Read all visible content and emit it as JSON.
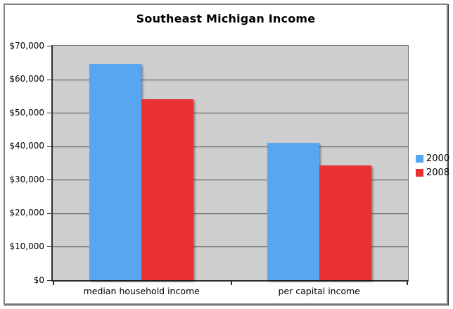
{
  "chart_data": {
    "type": "bar",
    "title": "Southeast Michigan Income",
    "categories": [
      "median household income",
      "per capital income"
    ],
    "series": [
      {
        "name": "2000",
        "color": "#58a6f2",
        "values": [
          64500,
          41000
        ]
      },
      {
        "name": "2008",
        "color": "#e93134",
        "values": [
          54000,
          34300
        ]
      }
    ],
    "ylim": [
      0,
      70000
    ],
    "yticks": [
      {
        "value": 0,
        "label": "$0"
      },
      {
        "value": 10000,
        "label": "$10,000"
      },
      {
        "value": 20000,
        "label": "$20,000"
      },
      {
        "value": 30000,
        "label": "$30,000"
      },
      {
        "value": 40000,
        "label": "$40,000"
      },
      {
        "value": 50000,
        "label": "$50,000"
      },
      {
        "value": 60000,
        "label": "$60,000"
      },
      {
        "value": 70000,
        "label": "$70,000"
      }
    ],
    "grid": true,
    "legend_position": "right",
    "plot_background": "#cecece",
    "gridline_color": "#6e6e6e",
    "xlabel": "",
    "ylabel": ""
  }
}
